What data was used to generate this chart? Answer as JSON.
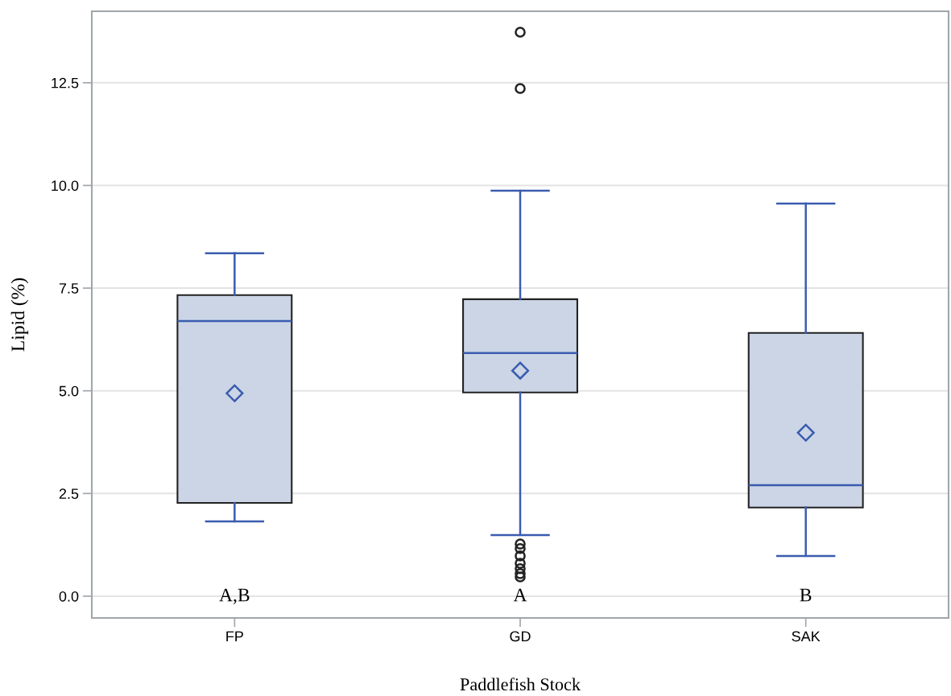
{
  "chart_data": {
    "type": "box",
    "xlabel": "Paddlefish Stock",
    "ylabel": "Lipid (%)",
    "categories": [
      "FP",
      "GD",
      "SAK"
    ],
    "boxes": [
      {
        "low": 1.82,
        "q1": 2.27,
        "median": 6.7,
        "q3": 7.33,
        "high": 8.35,
        "mean": 4.94
      },
      {
        "low": 1.49,
        "q1": 4.96,
        "median": 5.92,
        "q3": 7.23,
        "high": 9.87,
        "mean": 5.49,
        "outliers": [
          13.73,
          12.36,
          1.27,
          1.16,
          0.98,
          0.8,
          0.67,
          0.55,
          0.47
        ]
      },
      {
        "low": 0.98,
        "q1": 2.16,
        "median": 2.7,
        "q3": 6.41,
        "high": 9.56,
        "mean": 3.98
      }
    ],
    "color": "#cbd5e6",
    "ylim": [
      -0.53,
      14.24
    ],
    "yticks": [
      {
        "value": 0,
        "label": "0.0"
      },
      {
        "value": 2.5,
        "label": "2.5"
      },
      {
        "value": 5,
        "label": "5.0"
      },
      {
        "value": 7.5,
        "label": "7.5"
      },
      {
        "value": 10,
        "label": "10.0"
      },
      {
        "value": 12.5,
        "label": "12.5"
      }
    ],
    "grid": "y",
    "annotations": [
      "A,B",
      "A",
      "B"
    ]
  }
}
